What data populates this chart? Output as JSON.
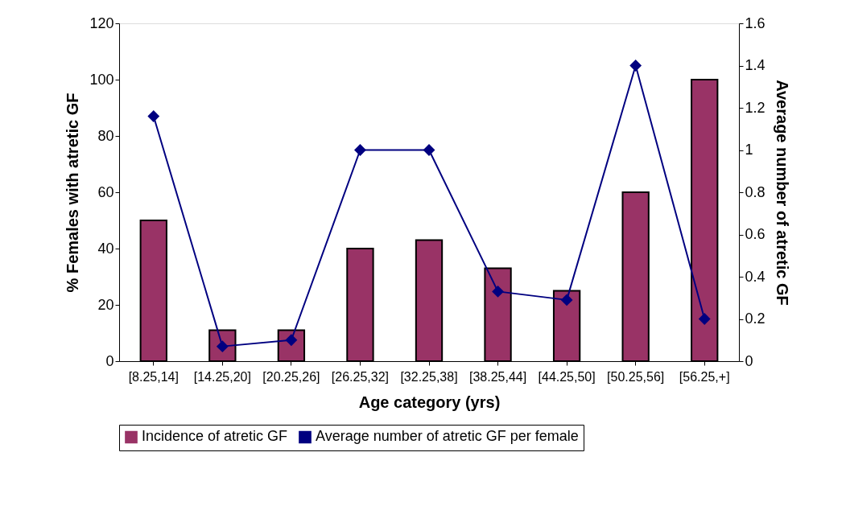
{
  "chart_data": {
    "type": "bar",
    "xlabel": "Age category (yrs)",
    "ylabel": "% Females with atretic GF",
    "y2label": "Average number of atretic GF",
    "categories": [
      "[8.25,14]",
      "[14.25,20]",
      "[20.25,26]",
      "[26.25,32]",
      "[32.25,38]",
      "[38.25,44]",
      "[44.25,50]",
      "[50.25,56]",
      "[56.25,+]"
    ],
    "series": [
      {
        "name": "Incidence of atretic GF",
        "color": "#993366",
        "values": [
          50,
          11,
          11,
          40,
          43,
          33,
          25,
          60,
          100
        ]
      },
      {
        "name": "Average number of atretic GF per female",
        "type": "line",
        "axis": "y2",
        "color": "#000080",
        "marker": "diamond",
        "values": [
          1.16,
          0.07,
          0.1,
          1.0,
          1.0,
          0.33,
          0.29,
          1.4,
          0.2
        ]
      }
    ],
    "ylim": [
      0,
      120
    ],
    "yticks": [
      0,
      20,
      40,
      60,
      80,
      100,
      120
    ],
    "y2lim": [
      0,
      1.6
    ],
    "y2ticks": [
      0,
      0.2,
      0.4,
      0.6,
      0.8,
      1,
      1.2,
      1.4,
      1.6
    ],
    "grid": false,
    "legend": "bottom"
  }
}
